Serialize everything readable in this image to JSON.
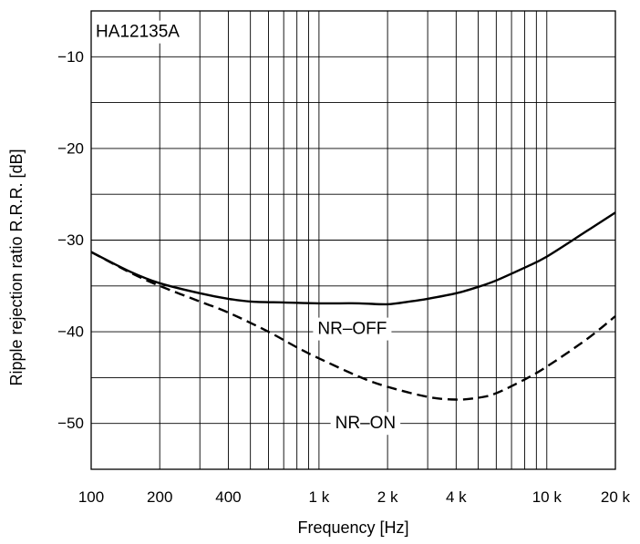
{
  "chart_data": {
    "type": "line",
    "title": "",
    "xlabel": "Frequency [Hz]",
    "ylabel": "Ripple rejection ratio R.R.R. [dB]",
    "x_scale": "log",
    "xlim": [
      100,
      20000
    ],
    "ylim": [
      -55,
      -5
    ],
    "grid": true,
    "x_ticks": [
      100,
      200,
      400,
      1000,
      2000,
      4000,
      10000,
      20000
    ],
    "x_tick_labels": [
      "100",
      "200",
      "400",
      "1 k",
      "2 k",
      "4 k",
      "10 k",
      "20 k"
    ],
    "y_ticks": [
      -10,
      -20,
      -30,
      -40,
      -50
    ],
    "y_tick_labels": [
      "−10",
      "−20",
      "−30",
      "−40",
      "−50"
    ],
    "annotations": [
      {
        "text": "HA12135A",
        "x": 160,
        "y": -7.3
      },
      {
        "text": "NR–OFF",
        "x": 1400,
        "y": -39.7
      },
      {
        "text": "NR–ON",
        "x": 1600,
        "y": -50.0
      }
    ],
    "series": [
      {
        "label": "NR–OFF",
        "style": "solid",
        "color": "#000000",
        "x": [
          100,
          150,
          200,
          300,
          400,
          500,
          700,
          1000,
          1500,
          2000,
          2500,
          3000,
          4000,
          5000,
          6000,
          8000,
          10000,
          15000,
          20000
        ],
        "y": [
          -31.3,
          -33.5,
          -34.7,
          -35.8,
          -36.4,
          -36.7,
          -36.8,
          -36.9,
          -36.9,
          -37.0,
          -36.7,
          -36.4,
          -35.8,
          -35.1,
          -34.4,
          -33.0,
          -31.8,
          -29.0,
          -27.0
        ]
      },
      {
        "label": "NR–ON",
        "style": "dashed",
        "color": "#000000",
        "x": [
          100,
          150,
          200,
          300,
          400,
          600,
          800,
          1000,
          1500,
          2000,
          3000,
          4000,
          5000,
          6000,
          8000,
          10000,
          15000,
          20000
        ],
        "y": [
          -31.3,
          -33.6,
          -35.0,
          -36.7,
          -37.9,
          -40.0,
          -41.7,
          -42.9,
          -44.9,
          -46.0,
          -47.1,
          -47.4,
          -47.2,
          -46.7,
          -45.2,
          -43.8,
          -40.8,
          -38.3
        ]
      }
    ]
  }
}
